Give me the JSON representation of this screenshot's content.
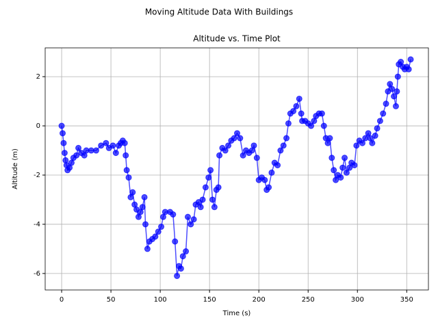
{
  "chart_data": {
    "type": "line",
    "suptitle": "Moving Altitude Data With Buildings",
    "title": "Altitude vs. Time Plot",
    "x_label": "Time (s)",
    "y_label": "Altitude (m)",
    "x": [
      0,
      1,
      2,
      3,
      4,
      5,
      6,
      8,
      10,
      12,
      15,
      17,
      20,
      23,
      25,
      30,
      35,
      40,
      45,
      48,
      52,
      55,
      58,
      60,
      62,
      64,
      65,
      66,
      68,
      70,
      72,
      74,
      76,
      78,
      80,
      82,
      84,
      85,
      87,
      89,
      92,
      95,
      98,
      101,
      103,
      105,
      110,
      113,
      115,
      117,
      119,
      121,
      123,
      126,
      128,
      131,
      134,
      136,
      139,
      141,
      143,
      146,
      149,
      151,
      153,
      155,
      157,
      159,
      160,
      163,
      166,
      169,
      172,
      175,
      178,
      181,
      184,
      187,
      190,
      193,
      195,
      198,
      200,
      203,
      206,
      208,
      210,
      213,
      216,
      219,
      222,
      225,
      228,
      230,
      232,
      235,
      238,
      241,
      243,
      244,
      247,
      250,
      253,
      256,
      258,
      261,
      264,
      266,
      268,
      270,
      272,
      274,
      276,
      278,
      280,
      283,
      285,
      287,
      289,
      292,
      294,
      297,
      299,
      302,
      305,
      308,
      311,
      313,
      315,
      318,
      320,
      323,
      326,
      329,
      331,
      333,
      335,
      337,
      339,
      340,
      341,
      342,
      344,
      346,
      348,
      350,
      352,
      354
    ],
    "series": [
      {
        "name": "Altitude",
        "color": "#0000ff",
        "values": [
          0,
          -0.3,
          -0.7,
          -1.1,
          -1.4,
          -1.6,
          -1.8,
          -1.7,
          -1.5,
          -1.3,
          -1.2,
          -0.9,
          -1.1,
          -1.2,
          -1.0,
          -1.0,
          -1.0,
          -0.8,
          -0.7,
          -0.9,
          -0.8,
          -1.1,
          -0.8,
          -0.7,
          -0.6,
          -0.7,
          -1.2,
          -1.8,
          -2.1,
          -2.9,
          -2.7,
          -3.2,
          -3.4,
          -3.7,
          -3.5,
          -3.3,
          -2.9,
          -4.0,
          -5.0,
          -4.7,
          -4.6,
          -4.5,
          -4.3,
          -4.1,
          -3.7,
          -3.5,
          -3.5,
          -3.6,
          -4.7,
          -6.1,
          -5.7,
          -5.8,
          -5.3,
          -5.1,
          -3.7,
          -4.0,
          -3.8,
          -3.2,
          -3.1,
          -3.3,
          -3.0,
          -2.5,
          -2.1,
          -1.8,
          -3.0,
          -3.3,
          -2.6,
          -2.5,
          -1.2,
          -0.9,
          -1.0,
          -0.8,
          -0.6,
          -0.5,
          -0.3,
          -0.5,
          -1.2,
          -1.0,
          -1.1,
          -1.0,
          -0.8,
          -1.3,
          -2.2,
          -2.1,
          -2.2,
          -2.6,
          -2.5,
          -1.9,
          -1.5,
          -1.6,
          -1.0,
          -0.8,
          -0.5,
          0.1,
          0.5,
          0.6,
          0.8,
          1.1,
          0.5,
          0.2,
          0.2,
          0.1,
          0,
          0.2,
          0.4,
          0.5,
          0.5,
          0.0,
          -0.5,
          -0.7,
          -0.5,
          -1.3,
          -1.8,
          -2.2,
          -2.0,
          -2.1,
          -1.7,
          -1.3,
          -1.9,
          -1.7,
          -1.5,
          -1.6,
          -0.8,
          -0.6,
          -0.7,
          -0.5,
          -0.3,
          -0.5,
          -0.7,
          -0.4,
          -0.1,
          0.2,
          0.5,
          0.9,
          1.4,
          1.7,
          1.5,
          1.2,
          0.8,
          1.4,
          2.0,
          2.5,
          2.6,
          2.4,
          2.3,
          2.4,
          2.3,
          2.7
        ]
      }
    ],
    "xlim": [
      -16.7,
      372
    ],
    "ylim": [
      -6.67,
      3.17
    ],
    "xticks": [
      0,
      50,
      100,
      150,
      200,
      250,
      300,
      350
    ],
    "yticks": [
      -6,
      -4,
      -2,
      0,
      2
    ],
    "grid": true
  }
}
